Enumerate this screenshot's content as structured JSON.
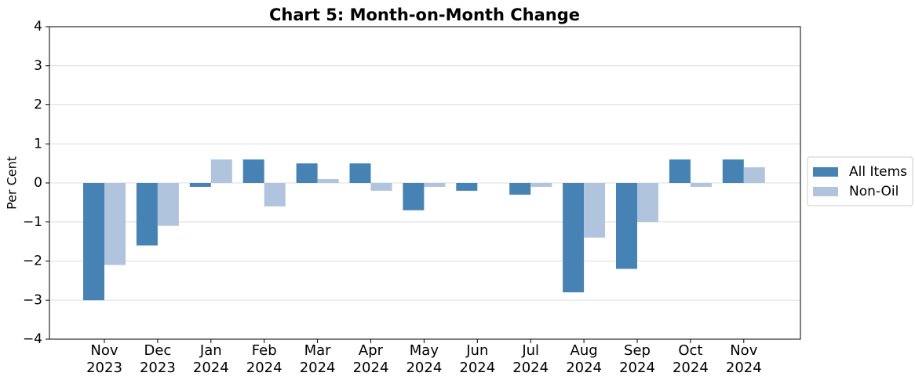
{
  "chart_data": {
    "type": "bar",
    "title": "Chart 5: Month-on-Month Change",
    "y_label": "Per Cent",
    "categories": [
      "Nov 2023",
      "Dec 2023",
      "Jan 2024",
      "Feb 2024",
      "Mar 2024",
      "Apr 2024",
      "May 2024",
      "Jun 2024",
      "Jul 2024",
      "Aug 2024",
      "Sep 2024",
      "Oct 2024",
      "Nov 2024"
    ],
    "series": [
      {
        "name": "All Items",
        "color": "#4682b4",
        "values": [
          -3.0,
          -1.6,
          -0.1,
          0.6,
          0.5,
          0.5,
          -0.7,
          -0.2,
          -0.3,
          -2.8,
          -2.2,
          0.6,
          0.6
        ]
      },
      {
        "name": "Non-Oil",
        "color": "#b0c4de",
        "values": [
          -2.1,
          -1.1,
          0.6,
          -0.6,
          0.1,
          -0.2,
          -0.1,
          0.0,
          -0.1,
          -1.4,
          -1.0,
          -0.1,
          0.4
        ]
      }
    ],
    "ylim": [
      -4,
      4
    ],
    "yticks": [
      {
        "value": -4,
        "label": "−4"
      },
      {
        "value": -3,
        "label": "−3"
      },
      {
        "value": -2,
        "label": "−2"
      },
      {
        "value": -1,
        "label": "−1"
      },
      0,
      1,
      2,
      3,
      4
    ],
    "grid": true,
    "legend": "right"
  }
}
